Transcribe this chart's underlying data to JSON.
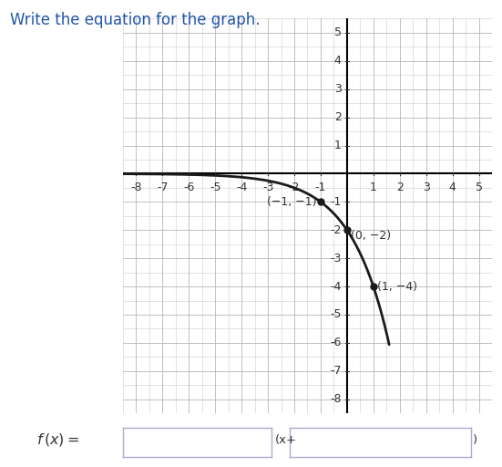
{
  "title": "Write the equation for the graph.",
  "xmin": -8.5,
  "xmax": 5.5,
  "ymin": -8.5,
  "ymax": 5.5,
  "xticks": [
    -8,
    -7,
    -6,
    -5,
    -4,
    -3,
    -2,
    -1,
    1,
    2,
    3,
    4,
    5
  ],
  "yticks": [
    -8,
    -7,
    -6,
    -5,
    -4,
    -3,
    -2,
    -1,
    1,
    2,
    3,
    4,
    5
  ],
  "points": [
    [
      -1,
      -1
    ],
    [
      0,
      -2
    ],
    [
      1,
      -4
    ]
  ],
  "point_labels": [
    "(−1, −1)",
    "(0, −2)",
    "(1, −4)"
  ],
  "curve_color": "#1a1a1a",
  "minor_grid_color": "#cccccc",
  "major_grid_color": "#bbbbbb",
  "axis_color": "#000000",
  "background_color": "#ffffff",
  "tick_fontsize": 9,
  "title_fontsize": 12,
  "point_label_fontsize": 9
}
